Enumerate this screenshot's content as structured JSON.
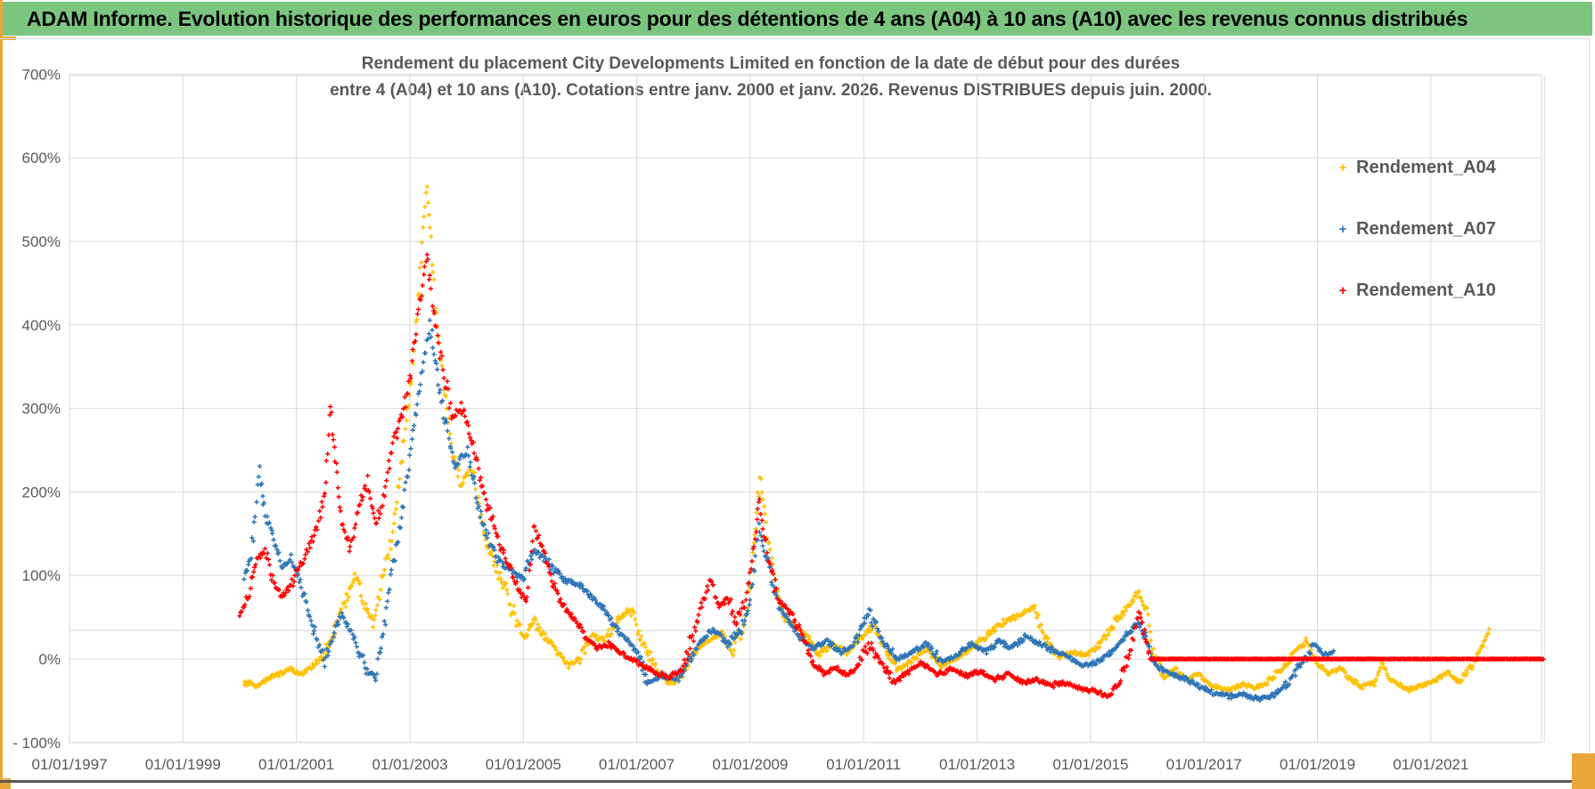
{
  "header": {
    "title": "ADAM Informe. Evolution historique des performances en euros pour des détentions de 4 ans (A04) à 10 ans (A10) avec les revenus connus distribués",
    "bg_color": "#7CC57F",
    "accent_color": "#E9A73B"
  },
  "chart_data": {
    "type": "scatter",
    "marker": "+",
    "title_line1": "Rendement du placement City Developments Limited en fonction de la date de début pour des durées",
    "title_line2": "entre 4 (A04) et 10 ans (A10). Cotations entre janv. 2000 et janv. 2026. Revenus DISTRIBUES depuis juin. 2000.",
    "grid": true,
    "ylim": [
      -100,
      700
    ],
    "y_tick_values": [
      700,
      600,
      500,
      400,
      300,
      200,
      100,
      0,
      -100
    ],
    "y_ticks": [
      "700%",
      "600%",
      "500%",
      "400%",
      "300%",
      "200%",
      "100%",
      "0%",
      "- 100%"
    ],
    "x_tick_years": [
      1997,
      1999,
      2001,
      2003,
      2005,
      2007,
      2009,
      2011,
      2013,
      2015,
      2017,
      2019,
      2021
    ],
    "x_ticks": [
      "01/01/1997",
      "01/01/1999",
      "01/01/2001",
      "01/01/2003",
      "01/01/2005",
      "01/01/2007",
      "01/01/2009",
      "01/01/2011",
      "01/01/2013",
      "01/01/2015",
      "01/01/2017",
      "01/01/2019",
      "01/01/2021"
    ],
    "x_range_years": [
      1997,
      2023
    ],
    "legend_position": "right",
    "legend": [
      {
        "name": "Rendement_A04",
        "color": "#FFC000"
      },
      {
        "name": "Rendement_A07",
        "color": "#2E75B6"
      },
      {
        "name": "Rendement_A10",
        "color": "#FF0000"
      }
    ],
    "series": [
      {
        "name": "Rendement_A04",
        "color": "#FFC000",
        "anchor_points": [
          [
            2000.08,
            -28
          ],
          [
            2000.3,
            -33
          ],
          [
            2000.6,
            -20
          ],
          [
            2000.9,
            -12
          ],
          [
            2001.1,
            -18
          ],
          [
            2001.3,
            -8
          ],
          [
            2001.5,
            5
          ],
          [
            2001.7,
            40
          ],
          [
            2001.9,
            75
          ],
          [
            2002.05,
            100
          ],
          [
            2002.2,
            65
          ],
          [
            2002.35,
            45
          ],
          [
            2002.5,
            90
          ],
          [
            2002.7,
            150
          ],
          [
            2002.9,
            260
          ],
          [
            2003.05,
            350
          ],
          [
            2003.2,
            480
          ],
          [
            2003.3,
            570
          ],
          [
            2003.45,
            430
          ],
          [
            2003.6,
            330
          ],
          [
            2003.75,
            250
          ],
          [
            2003.9,
            210
          ],
          [
            2004.1,
            230
          ],
          [
            2004.3,
            150
          ],
          [
            2004.55,
            110
          ],
          [
            2004.8,
            60
          ],
          [
            2005.0,
            25
          ],
          [
            2005.2,
            45
          ],
          [
            2005.4,
            25
          ],
          [
            2005.6,
            8
          ],
          [
            2005.8,
            -8
          ],
          [
            2006.0,
            0
          ],
          [
            2006.2,
            28
          ],
          [
            2006.45,
            22
          ],
          [
            2006.7,
            50
          ],
          [
            2006.9,
            60
          ],
          [
            2007.1,
            20
          ],
          [
            2007.35,
            -15
          ],
          [
            2007.6,
            -30
          ],
          [
            2007.8,
            -20
          ],
          [
            2008.0,
            5
          ],
          [
            2008.2,
            20
          ],
          [
            2008.5,
            30
          ],
          [
            2008.7,
            8
          ],
          [
            2008.9,
            45
          ],
          [
            2009.0,
            90
          ],
          [
            2009.1,
            160
          ],
          [
            2009.17,
            218
          ],
          [
            2009.3,
            150
          ],
          [
            2009.45,
            80
          ],
          [
            2009.6,
            48
          ],
          [
            2009.8,
            40
          ],
          [
            2010.0,
            28
          ],
          [
            2010.2,
            5
          ],
          [
            2010.45,
            18
          ],
          [
            2010.7,
            8
          ],
          [
            2010.9,
            20
          ],
          [
            2011.15,
            38
          ],
          [
            2011.4,
            10
          ],
          [
            2011.6,
            -12
          ],
          [
            2011.8,
            -5
          ],
          [
            2012.1,
            12
          ],
          [
            2012.4,
            -8
          ],
          [
            2012.7,
            3
          ],
          [
            2012.9,
            12
          ],
          [
            2013.2,
            30
          ],
          [
            2013.5,
            45
          ],
          [
            2013.8,
            55
          ],
          [
            2014.0,
            62
          ],
          [
            2014.2,
            25
          ],
          [
            2014.45,
            2
          ],
          [
            2014.7,
            8
          ],
          [
            2014.9,
            5
          ],
          [
            2015.1,
            12
          ],
          [
            2015.3,
            30
          ],
          [
            2015.55,
            55
          ],
          [
            2015.85,
            80
          ],
          [
            2016.0,
            55
          ],
          [
            2016.1,
            10
          ],
          [
            2016.3,
            -22
          ],
          [
            2016.5,
            -12
          ],
          [
            2016.7,
            -25
          ],
          [
            2016.9,
            -18
          ],
          [
            2017.1,
            -30
          ],
          [
            2017.4,
            -38
          ],
          [
            2017.7,
            -30
          ],
          [
            2017.9,
            -35
          ],
          [
            2018.1,
            -28
          ],
          [
            2018.4,
            -12
          ],
          [
            2018.6,
            10
          ],
          [
            2018.8,
            20
          ],
          [
            2019.0,
            -5
          ],
          [
            2019.2,
            -18
          ],
          [
            2019.4,
            -12
          ],
          [
            2019.6,
            -25
          ],
          [
            2019.8,
            -33
          ],
          [
            2020.0,
            -28
          ],
          [
            2020.15,
            -5
          ],
          [
            2020.3,
            -25
          ],
          [
            2020.6,
            -38
          ],
          [
            2020.9,
            -30
          ],
          [
            2021.1,
            -25
          ],
          [
            2021.3,
            -15
          ],
          [
            2021.5,
            -28
          ],
          [
            2021.7,
            -10
          ],
          [
            2021.9,
            15
          ],
          [
            2022.05,
            40
          ]
        ]
      },
      {
        "name": "Rendement_A07",
        "color": "#2E75B6",
        "anchor_points": [
          [
            2000.08,
            100
          ],
          [
            2000.2,
            125
          ],
          [
            2000.35,
            225
          ],
          [
            2000.45,
            175
          ],
          [
            2000.6,
            140
          ],
          [
            2000.75,
            110
          ],
          [
            2000.9,
            120
          ],
          [
            2001.05,
            95
          ],
          [
            2001.2,
            60
          ],
          [
            2001.35,
            25
          ],
          [
            2001.5,
            -5
          ],
          [
            2001.65,
            30
          ],
          [
            2001.8,
            55
          ],
          [
            2001.95,
            35
          ],
          [
            2002.1,
            10
          ],
          [
            2002.25,
            -15
          ],
          [
            2002.4,
            -22
          ],
          [
            2002.55,
            40
          ],
          [
            2002.7,
            110
          ],
          [
            2002.85,
            170
          ],
          [
            2003.0,
            240
          ],
          [
            2003.15,
            320
          ],
          [
            2003.35,
            400
          ],
          [
            2003.5,
            330
          ],
          [
            2003.65,
            280
          ],
          [
            2003.8,
            230
          ],
          [
            2004.0,
            250
          ],
          [
            2004.2,
            180
          ],
          [
            2004.4,
            140
          ],
          [
            2004.6,
            115
          ],
          [
            2004.8,
            105
          ],
          [
            2005.0,
            95
          ],
          [
            2005.2,
            130
          ],
          [
            2005.45,
            115
          ],
          [
            2005.7,
            95
          ],
          [
            2005.95,
            90
          ],
          [
            2006.2,
            75
          ],
          [
            2006.4,
            62
          ],
          [
            2006.6,
            40
          ],
          [
            2006.8,
            25
          ],
          [
            2007.0,
            8
          ],
          [
            2007.2,
            -28
          ],
          [
            2007.45,
            -20
          ],
          [
            2007.7,
            -25
          ],
          [
            2007.9,
            -5
          ],
          [
            2008.1,
            20
          ],
          [
            2008.35,
            35
          ],
          [
            2008.6,
            18
          ],
          [
            2008.85,
            35
          ],
          [
            2009.0,
            70
          ],
          [
            2009.15,
            160
          ],
          [
            2009.3,
            120
          ],
          [
            2009.5,
            60
          ],
          [
            2009.7,
            45
          ],
          [
            2009.9,
            25
          ],
          [
            2010.1,
            12
          ],
          [
            2010.35,
            22
          ],
          [
            2010.6,
            8
          ],
          [
            2010.85,
            18
          ],
          [
            2011.1,
            55
          ],
          [
            2011.35,
            20
          ],
          [
            2011.6,
            0
          ],
          [
            2011.85,
            8
          ],
          [
            2012.1,
            18
          ],
          [
            2012.4,
            -5
          ],
          [
            2012.65,
            5
          ],
          [
            2012.9,
            18
          ],
          [
            2013.15,
            8
          ],
          [
            2013.4,
            22
          ],
          [
            2013.6,
            12
          ],
          [
            2013.85,
            28
          ],
          [
            2014.1,
            18
          ],
          [
            2014.35,
            10
          ],
          [
            2014.6,
            3
          ],
          [
            2014.85,
            -8
          ],
          [
            2015.1,
            -5
          ],
          [
            2015.35,
            8
          ],
          [
            2015.6,
            25
          ],
          [
            2015.85,
            43
          ],
          [
            2016.0,
            20
          ],
          [
            2016.15,
            -8
          ],
          [
            2016.4,
            -18
          ],
          [
            2016.7,
            -25
          ],
          [
            2016.9,
            -32
          ],
          [
            2017.15,
            -40
          ],
          [
            2017.45,
            -45
          ],
          [
            2017.7,
            -42
          ],
          [
            2017.95,
            -48
          ],
          [
            2018.2,
            -45
          ],
          [
            2018.45,
            -30
          ],
          [
            2018.7,
            -8
          ],
          [
            2018.95,
            18
          ],
          [
            2019.1,
            5
          ],
          [
            2019.3,
            8
          ]
        ]
      },
      {
        "name": "Rendement_A10",
        "color": "#FF0000",
        "anchor_points": [
          [
            2000.0,
            55
          ],
          [
            2000.15,
            75
          ],
          [
            2000.3,
            120
          ],
          [
            2000.45,
            128
          ],
          [
            2000.6,
            95
          ],
          [
            2000.75,
            75
          ],
          [
            2000.9,
            88
          ],
          [
            2001.05,
            110
          ],
          [
            2001.2,
            130
          ],
          [
            2001.35,
            155
          ],
          [
            2001.5,
            200
          ],
          [
            2001.6,
            305
          ],
          [
            2001.7,
            230
          ],
          [
            2001.8,
            160
          ],
          [
            2001.95,
            130
          ],
          [
            2002.1,
            185
          ],
          [
            2002.25,
            210
          ],
          [
            2002.4,
            160
          ],
          [
            2002.55,
            200
          ],
          [
            2002.7,
            255
          ],
          [
            2002.85,
            290
          ],
          [
            2003.0,
            330
          ],
          [
            2003.15,
            420
          ],
          [
            2003.3,
            480
          ],
          [
            2003.45,
            400
          ],
          [
            2003.6,
            340
          ],
          [
            2003.75,
            290
          ],
          [
            2003.9,
            300
          ],
          [
            2004.1,
            260
          ],
          [
            2004.3,
            200
          ],
          [
            2004.5,
            150
          ],
          [
            2004.7,
            120
          ],
          [
            2004.9,
            85
          ],
          [
            2005.05,
            70
          ],
          [
            2005.2,
            160
          ],
          [
            2005.35,
            130
          ],
          [
            2005.5,
            95
          ],
          [
            2005.65,
            70
          ],
          [
            2005.8,
            55
          ],
          [
            2005.95,
            45
          ],
          [
            2006.1,
            25
          ],
          [
            2006.3,
            12
          ],
          [
            2006.5,
            18
          ],
          [
            2006.7,
            8
          ],
          [
            2006.9,
            0
          ],
          [
            2007.1,
            -8
          ],
          [
            2007.3,
            -15
          ],
          [
            2007.55,
            -22
          ],
          [
            2007.8,
            -12
          ],
          [
            2008.0,
            30
          ],
          [
            2008.15,
            65
          ],
          [
            2008.3,
            95
          ],
          [
            2008.45,
            60
          ],
          [
            2008.6,
            75
          ],
          [
            2008.75,
            45
          ],
          [
            2008.9,
            70
          ],
          [
            2009.05,
            120
          ],
          [
            2009.17,
            190
          ],
          [
            2009.3,
            130
          ],
          [
            2009.5,
            70
          ],
          [
            2009.7,
            55
          ],
          [
            2009.9,
            30
          ],
          [
            2010.1,
            -5
          ],
          [
            2010.3,
            -18
          ],
          [
            2010.5,
            -10
          ],
          [
            2010.7,
            -20
          ],
          [
            2010.9,
            -8
          ],
          [
            2011.1,
            18
          ],
          [
            2011.3,
            -5
          ],
          [
            2011.55,
            -28
          ],
          [
            2011.8,
            -15
          ],
          [
            2012.0,
            -5
          ],
          [
            2012.3,
            -18
          ],
          [
            2012.55,
            -12
          ],
          [
            2012.8,
            -20
          ],
          [
            2013.05,
            -15
          ],
          [
            2013.3,
            -25
          ],
          [
            2013.55,
            -18
          ],
          [
            2013.8,
            -28
          ],
          [
            2014.05,
            -25
          ],
          [
            2014.3,
            -32
          ],
          [
            2014.55,
            -28
          ],
          [
            2014.8,
            -35
          ],
          [
            2015.05,
            -38
          ],
          [
            2015.3,
            -44
          ],
          [
            2015.5,
            -30
          ],
          [
            2015.7,
            10
          ],
          [
            2015.85,
            53
          ],
          [
            2015.95,
            30
          ],
          [
            2016.05,
            0
          ],
          [
            2023.0,
            0
          ]
        ]
      }
    ]
  }
}
